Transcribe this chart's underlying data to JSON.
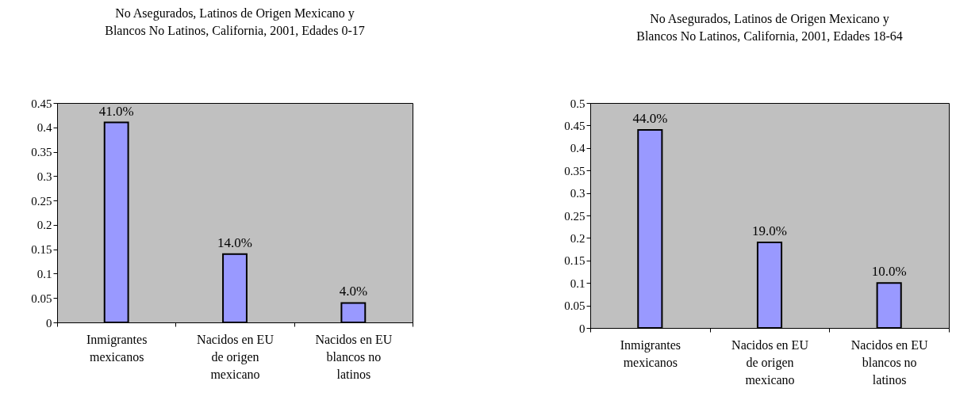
{
  "chart_data": [
    {
      "type": "bar",
      "title": "No Asegurados, Latinos de Origen Mexicano y Blancos No Latinos, California, 2001, Edades 0-17",
      "categories": [
        "Inmigrantes mexicanos",
        "Nacidos en EU de origen mexicano",
        "Nacidos en EU blancos no latinos"
      ],
      "values": [
        0.41,
        0.14,
        0.04
      ],
      "value_labels": [
        "41.0%",
        "14.0%",
        "4.0%"
      ],
      "color": "#9999ff",
      "ylim": [
        0,
        0.45
      ],
      "yticks": [
        0,
        0.05,
        0.1,
        0.15,
        0.2,
        0.25,
        0.3,
        0.35,
        0.4,
        0.45
      ],
      "grid": false,
      "legend": false
    },
    {
      "type": "bar",
      "title": "No Asegurados, Latinos de Origen Mexicano y Blancos No Latinos, California, 2001, Edades 18-64",
      "categories": [
        "Inmigrantes mexicanos",
        "Nacidos en EU de origen mexicano",
        "Nacidos en EU blancos no latinos"
      ],
      "values": [
        0.44,
        0.19,
        0.1
      ],
      "value_labels": [
        "44.0%",
        "19.0%",
        "10.0%"
      ],
      "color": "#9999ff",
      "ylim": [
        0,
        0.5
      ],
      "yticks": [
        0,
        0.05,
        0.1,
        0.15,
        0.2,
        0.25,
        0.3,
        0.35,
        0.4,
        0.45,
        0.5
      ],
      "grid": false,
      "legend": false
    }
  ]
}
